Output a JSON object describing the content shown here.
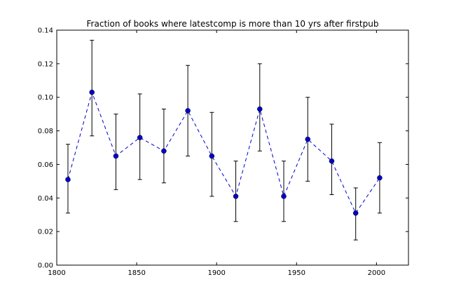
{
  "chart_data": {
    "type": "line",
    "title": "Fraction of books where latestcomp is more than 10 yrs after firstpub",
    "xlabel": "",
    "ylabel": "",
    "xlim": [
      1800,
      2020
    ],
    "ylim": [
      0.0,
      0.14
    ],
    "x_ticks": [
      1800,
      1850,
      1900,
      1950,
      2000
    ],
    "y_ticks": [
      0.0,
      0.02,
      0.04,
      0.06,
      0.08,
      0.1,
      0.12,
      0.14
    ],
    "x_tick_labels": [
      "1800",
      "1850",
      "1900",
      "1950",
      "2000"
    ],
    "y_tick_labels": [
      "0.00",
      "0.02",
      "0.04",
      "0.06",
      "0.08",
      "0.10",
      "0.12",
      "0.14"
    ],
    "grid": false,
    "legend": "none",
    "series": [
      {
        "color": "#0000cc",
        "line_style": "dashed",
        "marker": "circle",
        "x": [
          1807,
          1822,
          1837,
          1852,
          1867,
          1882,
          1897,
          1912,
          1927,
          1942,
          1957,
          1972,
          1987,
          2002
        ],
        "y": [
          0.051,
          0.103,
          0.065,
          0.076,
          0.068,
          0.092,
          0.065,
          0.041,
          0.093,
          0.041,
          0.075,
          0.062,
          0.031,
          0.052
        ],
        "err_low": [
          0.031,
          0.077,
          0.045,
          0.051,
          0.049,
          0.065,
          0.041,
          0.026,
          0.068,
          0.026,
          0.05,
          0.042,
          0.015,
          0.031
        ],
        "err_high": [
          0.072,
          0.134,
          0.09,
          0.102,
          0.093,
          0.119,
          0.091,
          0.062,
          0.12,
          0.062,
          0.1,
          0.084,
          0.046,
          0.073
        ]
      }
    ]
  }
}
